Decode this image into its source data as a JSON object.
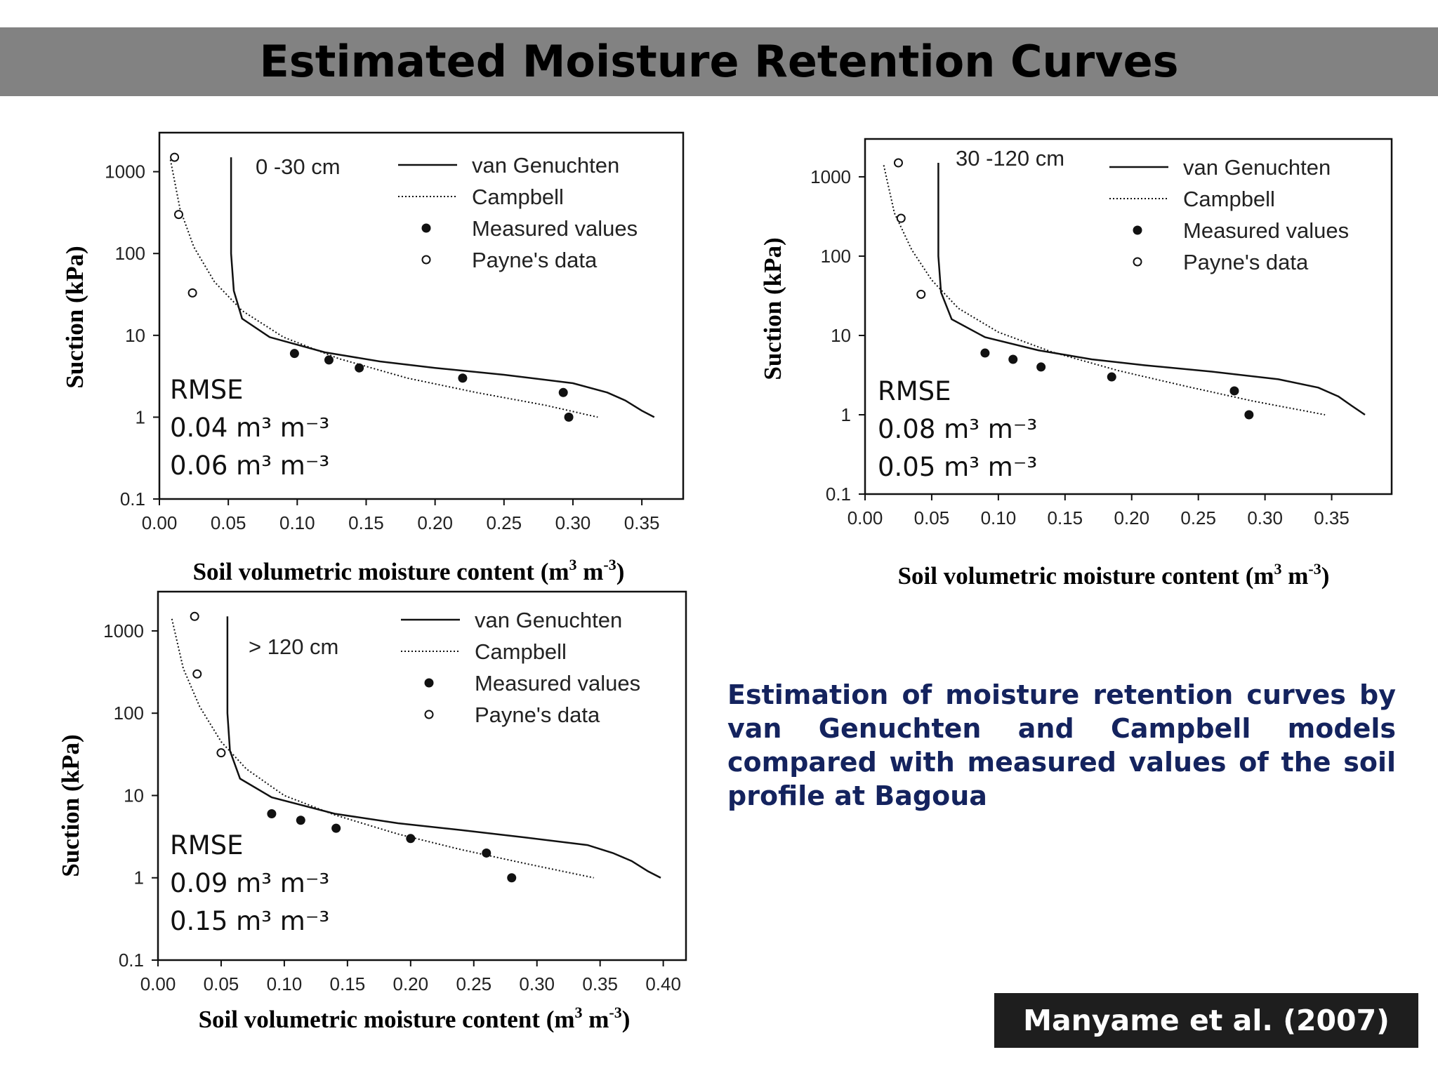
{
  "title": "Estimated Moisture Retention Curves",
  "description": "Estimation of moisture retention curves by van Genuchten and Campbell models compared with measured values of the soil profile at Bagoua",
  "citation": "Manyame et al. (2007)",
  "colors": {
    "title_bar": "#828282",
    "description_text": "#14235e",
    "citation_box": "#1e1e1e",
    "curves": "#111111"
  },
  "legend": {
    "van_genuchten": "van Genuchten",
    "campbell": "Campbell",
    "measured": "Measured values",
    "payne": "Payne's data"
  },
  "chart_data": [
    {
      "type": "line",
      "depth_label": "0 -30 cm",
      "xlabel": "Soil volumetric moisture content (m3 m-3)",
      "ylabel": "Suction (kPa)",
      "y_scale": "log",
      "xlim": [
        0,
        0.38
      ],
      "ylim": [
        0.1,
        3000
      ],
      "xticks": [
        "0.00",
        "0.05",
        "0.10",
        "0.15",
        "0.20",
        "0.25",
        "0.30",
        "0.35"
      ],
      "yticks": [
        "0.1",
        "1",
        "10",
        "100",
        "1000"
      ],
      "legend_position": "top-right",
      "rmse_title": "RMSE",
      "rmse_values": [
        "0.04 m³ m⁻³",
        "0.06 m³ m⁻³"
      ],
      "series": [
        {
          "name": "van Genuchten",
          "style": "solid",
          "x": [
            0.052,
            0.052,
            0.054,
            0.06,
            0.08,
            0.12,
            0.16,
            0.2,
            0.25,
            0.3,
            0.325,
            0.338,
            0.35,
            0.359
          ],
          "y": [
            1500,
            100,
            35,
            16,
            9.5,
            6.2,
            4.8,
            4.0,
            3.3,
            2.6,
            2.0,
            1.6,
            1.2,
            1.0
          ]
        },
        {
          "name": "Campbell",
          "style": "dotted",
          "x": [
            0.008,
            0.015,
            0.025,
            0.04,
            0.06,
            0.09,
            0.13,
            0.18,
            0.23,
            0.28,
            0.318
          ],
          "y": [
            1400,
            350,
            120,
            45,
            20,
            9.5,
            5.2,
            3.0,
            2.0,
            1.4,
            1.0
          ]
        },
        {
          "name": "Measured values",
          "style": "filled",
          "x": [
            0.098,
            0.123,
            0.145,
            0.22,
            0.293,
            0.297
          ],
          "y": [
            6.0,
            5.0,
            4.0,
            3.0,
            2.0,
            1.0
          ]
        },
        {
          "name": "Payne's data",
          "style": "open",
          "x": [
            0.011,
            0.014,
            0.024
          ],
          "y": [
            1500,
            300,
            33
          ]
        }
      ]
    },
    {
      "type": "line",
      "depth_label": "30 -120 cm",
      "xlabel": "Soil volumetric moisture content (m3 m-3)",
      "ylabel": "Suction (kPa)",
      "y_scale": "log",
      "xlim": [
        0,
        0.395
      ],
      "ylim": [
        0.1,
        3000
      ],
      "xticks": [
        "0.00",
        "0.05",
        "0.10",
        "0.15",
        "0.20",
        "0.25",
        "0.30",
        "0.35"
      ],
      "yticks": [
        "0.1",
        "1",
        "10",
        "100",
        "1000"
      ],
      "legend_position": "top-right",
      "rmse_title": "RMSE",
      "rmse_values": [
        "0.08 m³ m⁻³",
        "0.05 m³ m⁻³"
      ],
      "series": [
        {
          "name": "van Genuchten",
          "style": "solid",
          "x": [
            0.055,
            0.055,
            0.057,
            0.065,
            0.09,
            0.13,
            0.17,
            0.21,
            0.26,
            0.31,
            0.34,
            0.355,
            0.365,
            0.375
          ],
          "y": [
            1500,
            100,
            35,
            16,
            9.5,
            6.5,
            5.0,
            4.2,
            3.5,
            2.8,
            2.2,
            1.7,
            1.3,
            1.0
          ]
        },
        {
          "name": "Campbell",
          "style": "dotted",
          "x": [
            0.014,
            0.022,
            0.035,
            0.05,
            0.07,
            0.1,
            0.14,
            0.19,
            0.24,
            0.29,
            0.345
          ],
          "y": [
            1400,
            350,
            120,
            50,
            22,
            11,
            6.2,
            3.6,
            2.3,
            1.5,
            1.0
          ]
        },
        {
          "name": "Measured values",
          "style": "filled",
          "x": [
            0.09,
            0.111,
            0.132,
            0.185,
            0.277,
            0.288
          ],
          "y": [
            6.0,
            5.0,
            4.0,
            3.0,
            2.0,
            1.0
          ]
        },
        {
          "name": "Payne's data",
          "style": "open",
          "x": [
            0.025,
            0.027,
            0.042
          ],
          "y": [
            1500,
            300,
            33
          ]
        }
      ]
    },
    {
      "type": "line",
      "depth_label": "> 120 cm",
      "xlabel": "Soil volumetric moisture content (m3 m-3)",
      "ylabel": "Suction (kPa)",
      "y_scale": "log",
      "xlim": [
        0,
        0.418
      ],
      "ylim": [
        0.1,
        3000
      ],
      "xticks": [
        "0.00",
        "0.05",
        "0.10",
        "0.15",
        "0.20",
        "0.25",
        "0.30",
        "0.35",
        "0.40"
      ],
      "yticks": [
        "0.1",
        "1",
        "10",
        "100",
        "1000"
      ],
      "legend_position": "top-right",
      "rmse_title": "RMSE",
      "rmse_values": [
        "0.09 m³ m⁻³",
        "0.15 m³ m⁻³"
      ],
      "series": [
        {
          "name": "van Genuchten",
          "style": "solid",
          "x": [
            0.055,
            0.055,
            0.057,
            0.065,
            0.09,
            0.14,
            0.19,
            0.24,
            0.29,
            0.34,
            0.36,
            0.375,
            0.388,
            0.398
          ],
          "y": [
            1500,
            100,
            35,
            16,
            9.5,
            6.0,
            4.6,
            3.8,
            3.1,
            2.5,
            2.0,
            1.6,
            1.2,
            1.0
          ]
        },
        {
          "name": "Campbell",
          "style": "dotted",
          "x": [
            0.011,
            0.02,
            0.033,
            0.05,
            0.07,
            0.1,
            0.14,
            0.19,
            0.24,
            0.29,
            0.345
          ],
          "y": [
            1400,
            350,
            120,
            45,
            21,
            10,
            5.8,
            3.4,
            2.2,
            1.5,
            1.0
          ]
        },
        {
          "name": "Measured values",
          "style": "filled",
          "x": [
            0.09,
            0.113,
            0.141,
            0.2,
            0.26,
            0.28
          ],
          "y": [
            6.0,
            5.0,
            4.0,
            3.0,
            2.0,
            1.0
          ]
        },
        {
          "name": "Payne's data",
          "style": "open",
          "x": [
            0.029,
            0.031,
            0.05
          ],
          "y": [
            1500,
            300,
            33
          ]
        }
      ]
    }
  ]
}
